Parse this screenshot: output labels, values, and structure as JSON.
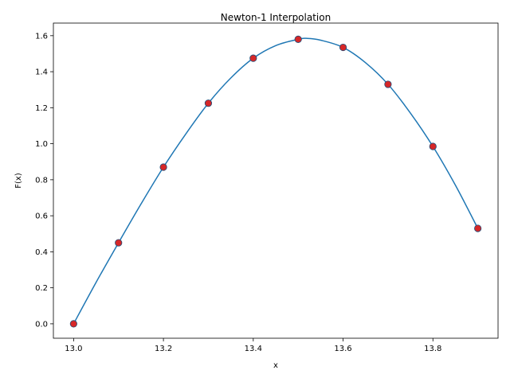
{
  "chart_data": {
    "type": "line",
    "title": "Newton-1 Interpolation",
    "xlabel": "x",
    "ylabel": "F(x)",
    "xlim": [
      12.955,
      13.945
    ],
    "ylim": [
      -0.08,
      1.67
    ],
    "xticks": [
      13.0,
      13.2,
      13.4,
      13.6,
      13.8
    ],
    "xtick_labels": [
      "13.0",
      "13.2",
      "13.4",
      "13.6",
      "13.8"
    ],
    "yticks": [
      0.0,
      0.2,
      0.4,
      0.6,
      0.8,
      1.0,
      1.2,
      1.4,
      1.6
    ],
    "ytick_labels": [
      "0.0",
      "0.2",
      "0.4",
      "0.6",
      "0.8",
      "1.0",
      "1.2",
      "1.4",
      "1.6"
    ],
    "grid": false,
    "legend": null,
    "series": [
      {
        "type": "line",
        "color": "#1f77b4",
        "x": [
          13.0,
          13.05,
          13.1,
          13.15,
          13.2,
          13.25,
          13.3,
          13.35,
          13.4,
          13.45,
          13.5,
          13.52,
          13.55,
          13.6,
          13.65,
          13.7,
          13.75,
          13.8,
          13.85,
          13.9
        ],
        "y": [
          0.0,
          0.23,
          0.45,
          0.665,
          0.87,
          1.055,
          1.225,
          1.365,
          1.475,
          1.545,
          1.58,
          1.585,
          1.575,
          1.535,
          1.45,
          1.33,
          1.17,
          0.985,
          0.77,
          0.53
        ]
      },
      {
        "type": "scatter",
        "color": "#d62728",
        "edgecolor": "#1f4e79",
        "x": [
          13.0,
          13.1,
          13.2,
          13.3,
          13.4,
          13.5,
          13.6,
          13.7,
          13.8,
          13.9
        ],
        "y": [
          0.0,
          0.45,
          0.87,
          1.225,
          1.475,
          1.58,
          1.535,
          1.33,
          0.985,
          0.53
        ]
      }
    ]
  }
}
